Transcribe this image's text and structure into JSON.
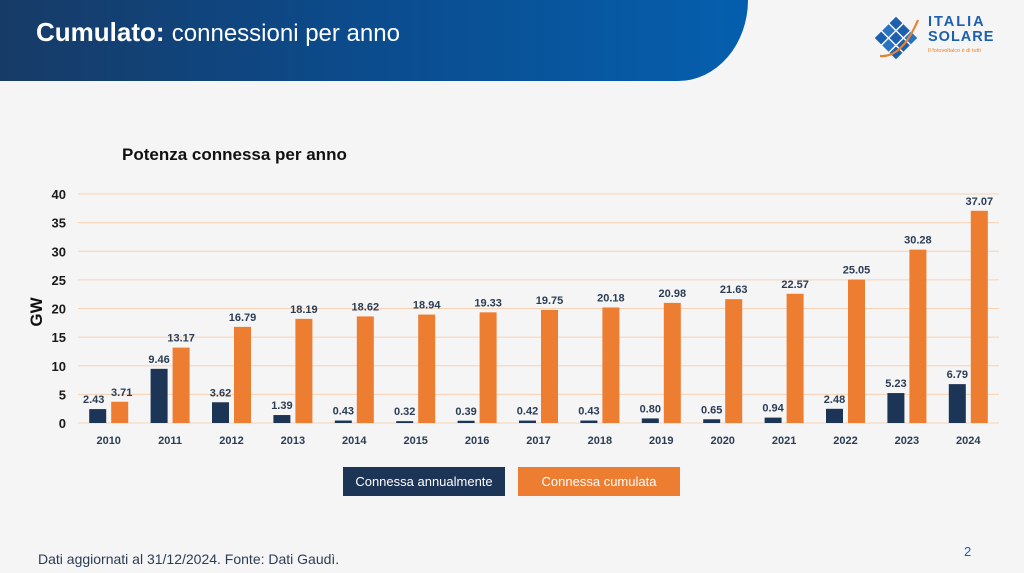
{
  "header": {
    "title_bold": "Cumulato:",
    "title_rest": "connessioni per anno"
  },
  "logo": {
    "line1": "ITALIA",
    "line2": "SOLARE",
    "tagline": "Il fotovoltaico è di tutti",
    "icon": "solar-panel-diamond-icon"
  },
  "colors": {
    "header_dark": "#173b66",
    "header_light": "#055fae",
    "annual": "#1c3455",
    "cumulative": "#ed7d31",
    "gridline": "#f8d2b4",
    "axis_text": "#1a1a1a",
    "label_text": "#2b3d55"
  },
  "chart_data": {
    "type": "bar",
    "title": "Potenza connessa per anno",
    "xlabel": "",
    "ylabel": "GW",
    "ylim": [
      0,
      40
    ],
    "yticks": [
      0,
      5,
      10,
      15,
      20,
      25,
      30,
      35,
      40
    ],
    "grid": true,
    "legend_position": "bottom",
    "categories": [
      "2010",
      "2011",
      "2012",
      "2013",
      "2014",
      "2015",
      "2016",
      "2017",
      "2018",
      "2019",
      "2020",
      "2021",
      "2022",
      "2023",
      "2024"
    ],
    "series": [
      {
        "name": "Connessa annualmente",
        "values": [
          2.43,
          9.46,
          3.62,
          1.39,
          0.43,
          0.32,
          0.39,
          0.42,
          0.43,
          0.8,
          0.65,
          0.94,
          2.48,
          5.23,
          6.79
        ],
        "labels": [
          "2.43",
          "9.46",
          "3.62",
          "1.39",
          "0.43",
          "0.32",
          "0.39",
          "0.42",
          "0.43",
          "0.80",
          "0.65",
          "0.94",
          "2.48",
          "5.23",
          "6.79"
        ]
      },
      {
        "name": "Connessa cumulata",
        "values": [
          3.71,
          13.17,
          16.79,
          18.19,
          18.62,
          18.94,
          19.33,
          19.75,
          20.18,
          20.98,
          21.63,
          22.57,
          25.05,
          30.28,
          37.07
        ],
        "labels": [
          "3.71",
          "13.17",
          "16.79",
          "18.19",
          "18.62",
          "18.94",
          "19.33",
          "19.75",
          "20.18",
          "20.98",
          "21.63",
          "22.57",
          "25.05",
          "30.28",
          "37.07"
        ]
      }
    ]
  },
  "footnote": "Dati aggiornati al 31/12/2024. Fonte: Dati Gaudì.",
  "page_number": "2"
}
